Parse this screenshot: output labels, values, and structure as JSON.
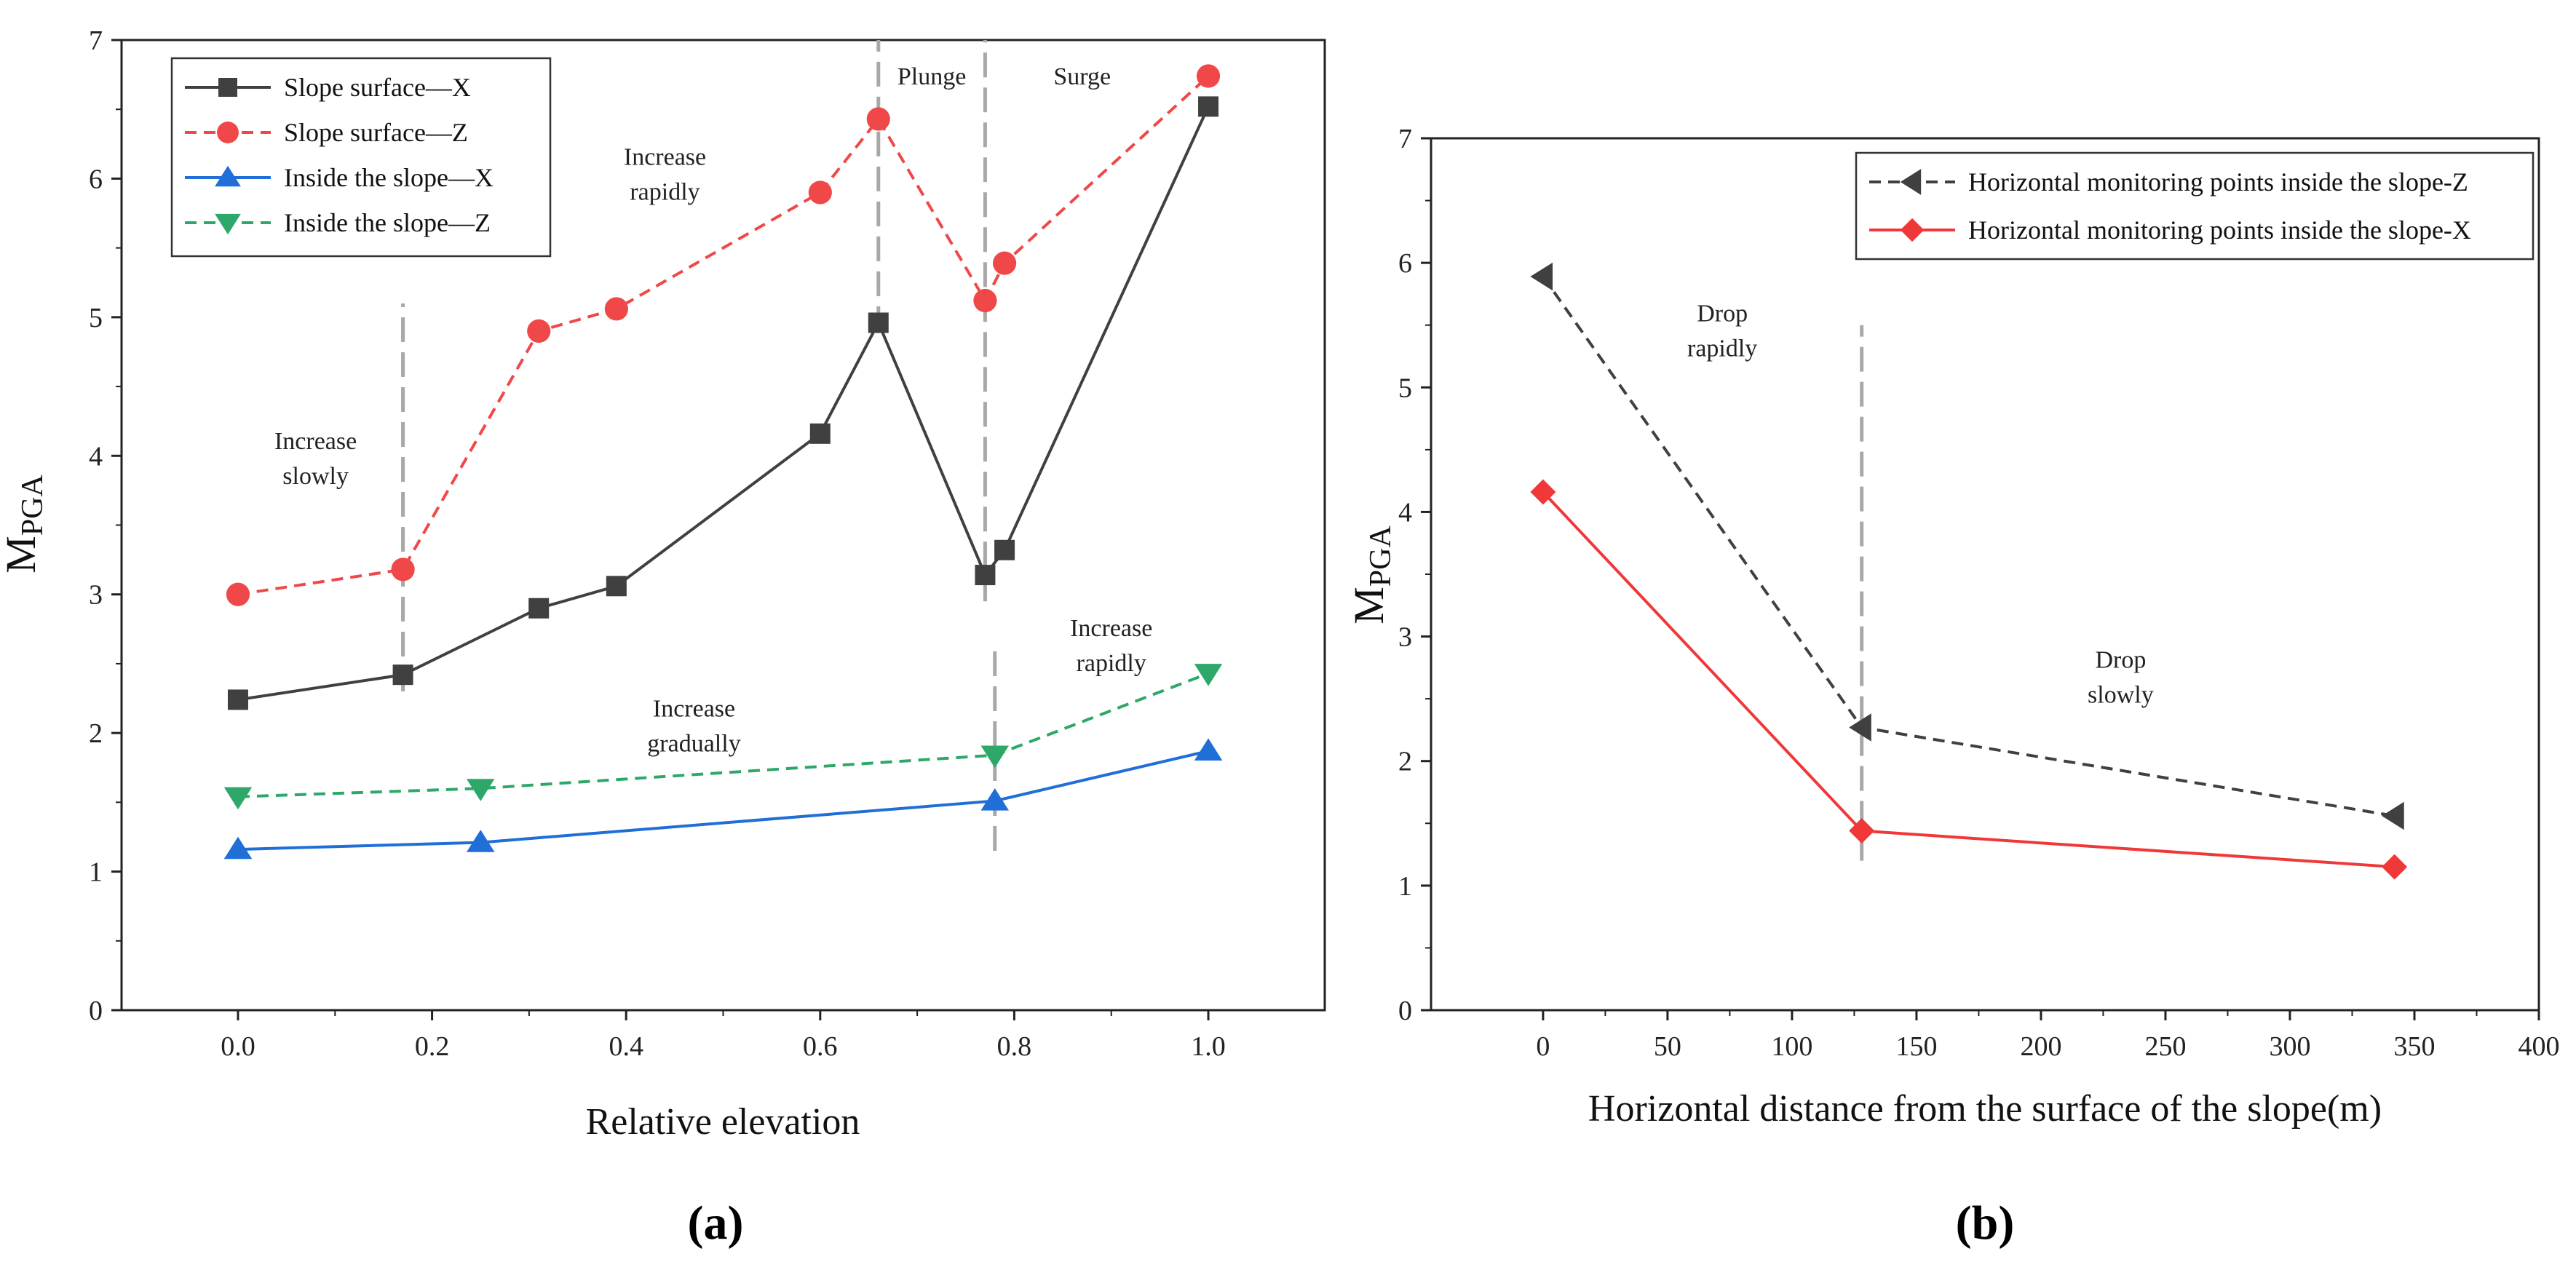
{
  "chart_data": [
    {
      "type": "line",
      "panel_label": "(a)",
      "xlabel": "Relative elevation",
      "ylabel_main": "M",
      "ylabel_sub": "PGA",
      "xlim": [
        -0.12,
        1.12
      ],
      "ylim": [
        0,
        7
      ],
      "xticks": [
        0.0,
        0.2,
        0.4,
        0.6,
        0.8,
        1.0
      ],
      "xtick_labels": [
        "0.0",
        "0.2",
        "0.4",
        "0.6",
        "0.8",
        "1.0"
      ],
      "yticks": [
        0,
        1,
        2,
        3,
        4,
        5,
        6,
        7
      ],
      "ytick_labels": [
        "0",
        "1",
        "2",
        "3",
        "4",
        "5",
        "6",
        "7"
      ],
      "legend_position": "top-left",
      "series": [
        {
          "name": "Slope surface—X",
          "color": "#404040",
          "marker": "square",
          "dash": "solid",
          "x": [
            0.0,
            0.17,
            0.31,
            0.39,
            0.6,
            0.66,
            0.77,
            0.79,
            1.0
          ],
          "y": [
            2.24,
            2.42,
            2.9,
            3.06,
            4.16,
            4.96,
            3.14,
            3.32,
            6.52
          ]
        },
        {
          "name": "Slope surface—Z",
          "color": "#f04848",
          "marker": "circle",
          "dash": "dashed",
          "x": [
            0.0,
            0.17,
            0.31,
            0.39,
            0.6,
            0.66,
            0.77,
            0.79,
            1.0
          ],
          "y": [
            3.0,
            3.18,
            4.9,
            5.06,
            5.9,
            6.43,
            5.12,
            5.39,
            6.74
          ]
        },
        {
          "name": "Inside the slope—X",
          "color": "#1f6fd6",
          "marker": "triangle-up",
          "dash": "solid",
          "x": [
            0.0,
            0.25,
            0.78,
            1.0
          ],
          "y": [
            1.16,
            1.21,
            1.51,
            1.87
          ]
        },
        {
          "name": "Inside the slope—Z",
          "color": "#2ea868",
          "marker": "triangle-down",
          "dash": "dashed",
          "x": [
            0.0,
            0.25,
            0.78,
            1.0
          ],
          "y": [
            1.54,
            1.6,
            1.84,
            2.43
          ]
        }
      ],
      "vlines": [
        {
          "x": 0.17,
          "y0": 2.3,
          "y1": 5.1
        },
        {
          "x": 0.66,
          "y0": 4.9,
          "y1": 7.0
        },
        {
          "x": 0.77,
          "y0": 2.95,
          "y1": 7.0
        },
        {
          "x": 0.78,
          "y0": 1.15,
          "y1": 2.6
        }
      ],
      "annotations": [
        {
          "lines": [
            "Increase",
            "slowly"
          ],
          "x": 0.08,
          "y": 4.05
        },
        {
          "lines": [
            "Increase",
            "rapidly"
          ],
          "x": 0.44,
          "y": 6.1
        },
        {
          "lines": [
            "Plunge"
          ],
          "x": 0.715,
          "y": 6.68
        },
        {
          "lines": [
            "Surge"
          ],
          "x": 0.87,
          "y": 6.68
        },
        {
          "lines": [
            "Increase",
            "gradually"
          ],
          "x": 0.47,
          "y": 2.12
        },
        {
          "lines": [
            "Increase",
            "rapidly"
          ],
          "x": 0.9,
          "y": 2.7
        }
      ]
    },
    {
      "type": "line",
      "panel_label": "(b)",
      "xlabel": "Horizontal distance from the surface of the slope(m)",
      "ylabel_main": "M",
      "ylabel_sub": "PGA",
      "xlim": [
        -45,
        400
      ],
      "ylim": [
        0,
        7
      ],
      "xticks": [
        0,
        50,
        100,
        150,
        200,
        250,
        300,
        350,
        400
      ],
      "xtick_labels": [
        "0",
        "50",
        "100",
        "150",
        "200",
        "250",
        "300",
        "350",
        "400"
      ],
      "yticks": [
        0,
        1,
        2,
        3,
        4,
        5,
        6,
        7
      ],
      "ytick_labels": [
        "0",
        "1",
        "2",
        "3",
        "4",
        "5",
        "6",
        "7"
      ],
      "legend_position": "top-right",
      "series": [
        {
          "name": "Horizontal monitoring points inside the slope-Z",
          "color": "#404040",
          "marker": "triangle-left",
          "dash": "dashed",
          "x": [
            0,
            128,
            342
          ],
          "y": [
            5.89,
            2.27,
            1.56
          ]
        },
        {
          "name": "Horizontal monitoring points inside the slope-X",
          "color": "#f03838",
          "marker": "diamond",
          "dash": "solid",
          "x": [
            0,
            128,
            342
          ],
          "y": [
            4.16,
            1.44,
            1.15
          ]
        }
      ],
      "vlines": [
        {
          "x": 128,
          "y0": 1.2,
          "y1": 5.5
        }
      ],
      "annotations": [
        {
          "lines": [
            "Drop",
            "rapidly"
          ],
          "x": 72,
          "y": 5.53
        },
        {
          "lines": [
            "Drop",
            "slowly"
          ],
          "x": 232,
          "y": 2.75
        }
      ]
    }
  ]
}
